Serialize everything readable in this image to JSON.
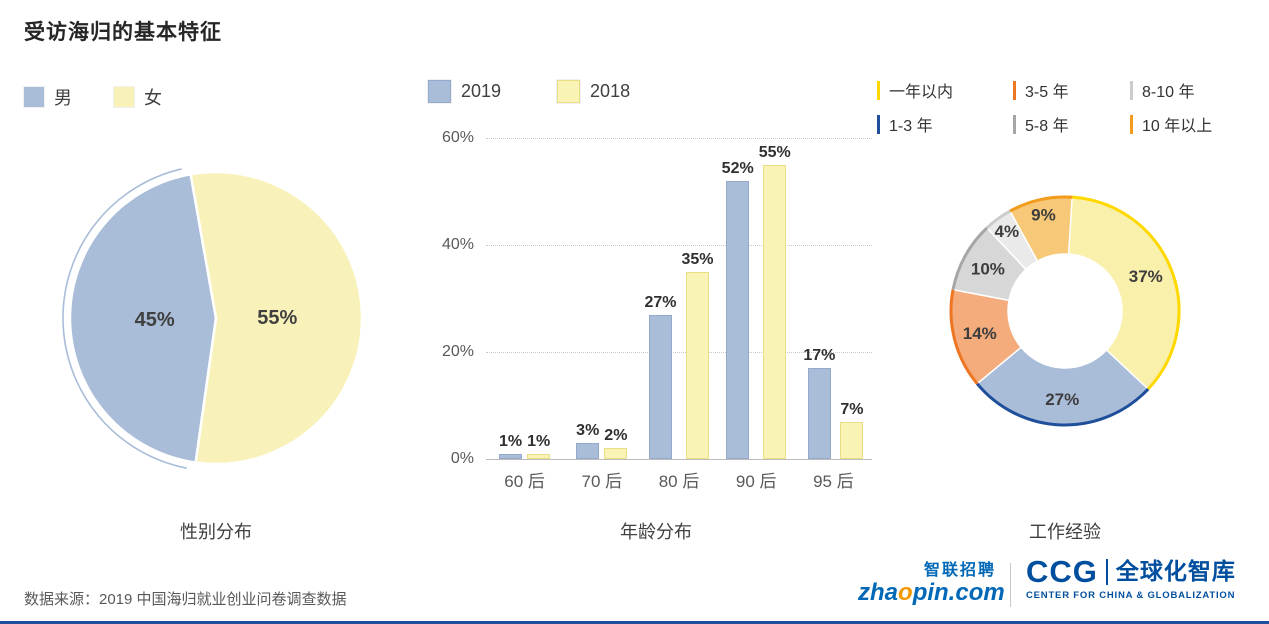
{
  "page_title": "受访海归的基本特征",
  "footer": {
    "source": "数据来源：2019 中国海归就业创业问卷调查数据"
  },
  "logos": {
    "zhaopin_cn": "智联招聘",
    "zhaopin_en_pre": "zha",
    "zhaopin_en_o": "o",
    "zhaopin_en_post": "pin.com",
    "ccg_abbr": "CCG",
    "ccg_cn": "全球化智库",
    "ccg_sub": "CENTER FOR CHINA & GLOBALIZATION"
  },
  "colors": {
    "bottom_rule": "#1e4f9c",
    "zhaopin_blue": "#0068b7",
    "zhaopin_orange": "#f39800",
    "ccg_blue": "#004e9e"
  },
  "chart_data": [
    {
      "type": "pie",
      "title": "性别分布",
      "start_angle": 188,
      "segments": [
        {
          "label": "男",
          "value": 45,
          "color": "#a9bcd8"
        },
        {
          "label": "女",
          "value": 55,
          "color": "#f8f2ba"
        }
      ]
    },
    {
      "type": "bar",
      "title": "年龄分布",
      "categories": [
        "60 后",
        "70 后",
        "80 后",
        "90 后",
        "95 后"
      ],
      "series": [
        {
          "name": "2019",
          "values": [
            1,
            3,
            27,
            52,
            17
          ],
          "fill": "#a9bcd8",
          "edge": "#94aacc"
        },
        {
          "name": "2018",
          "values": [
            1,
            2,
            35,
            55,
            7
          ],
          "fill": "#f9f3b5",
          "edge": "#e9dd86"
        }
      ],
      "ylim": [
        0,
        60
      ],
      "yticks": [
        {
          "value": 0,
          "label": "0%"
        },
        {
          "value": 20,
          "label": "20%"
        },
        {
          "value": 40,
          "label": "40%"
        },
        {
          "value": 60,
          "label": "60%"
        }
      ],
      "legend_position": "top",
      "grid": "dotted horizontal"
    },
    {
      "type": "donut",
      "title": "工作经验",
      "segments": [
        {
          "label": "一年以内",
          "value": 37,
          "fill": "#f9f0ab",
          "edge": "#ffd800"
        },
        {
          "label": "1-3 年",
          "value": 27,
          "fill": "#a9bcd8",
          "edge": "#1f4e9b"
        },
        {
          "label": "3-5 年",
          "value": 14,
          "fill": "#f4ac7c",
          "edge": "#ee7623"
        },
        {
          "label": "5-8 年",
          "value": 10,
          "fill": "#d7d7d7",
          "edge": "#a6a6a6"
        },
        {
          "label": "8-10 年",
          "value": 4,
          "fill": "#eaeaea",
          "edge": "#cccccc"
        },
        {
          "label": "10 年以上",
          "value": 9,
          "fill": "#f6c877",
          "edge": "#f29b1d"
        }
      ]
    }
  ]
}
